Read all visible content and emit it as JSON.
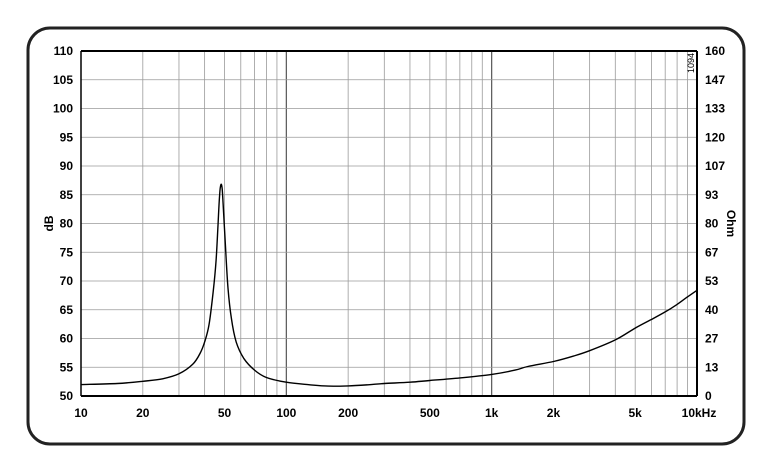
{
  "chart_data": {
    "type": "line",
    "xscale": "log",
    "xlim": [
      10,
      10000
    ],
    "ylim_left": [
      50,
      110
    ],
    "ylim_right": [
      0,
      160
    ],
    "ylabel_left": "dB",
    "ylabel_right": "Ohm",
    "grid": true,
    "watermark": "1094",
    "x_ticks": [
      {
        "value": 10,
        "label": "10"
      },
      {
        "value": 20,
        "label": "20"
      },
      {
        "value": 50,
        "label": "50"
      },
      {
        "value": 100,
        "label": "100"
      },
      {
        "value": 200,
        "label": "200"
      },
      {
        "value": 500,
        "label": "500"
      },
      {
        "value": 1000,
        "label": "1k"
      },
      {
        "value": 2000,
        "label": "2k"
      },
      {
        "value": 5000,
        "label": "5k"
      },
      {
        "value": 10000,
        "label": "10kHz"
      }
    ],
    "y_ticks_left": [
      "50",
      "55",
      "60",
      "65",
      "70",
      "75",
      "80",
      "85",
      "90",
      "95",
      "100",
      "105",
      "110"
    ],
    "y_ticks_right": [
      "0",
      "13",
      "27",
      "40",
      "53",
      "67",
      "80",
      "93",
      "107",
      "120",
      "133",
      "147",
      "160"
    ],
    "series": [
      {
        "axis": "right",
        "unit": "Ohm",
        "points": [
          [
            10,
            5.3
          ],
          [
            15,
            5.8
          ],
          [
            20,
            6.8
          ],
          [
            25,
            8.0
          ],
          [
            30,
            10.3
          ],
          [
            35,
            14.7
          ],
          [
            38,
            19.7
          ],
          [
            40,
            25.0
          ],
          [
            42,
            33.0
          ],
          [
            44,
            48.0
          ],
          [
            45.5,
            63.0
          ],
          [
            46.5,
            80.0
          ],
          [
            47.3,
            93.0
          ],
          [
            48,
            98.0
          ],
          [
            48.7,
            96.0
          ],
          [
            49.5,
            85.0
          ],
          [
            50.5,
            70.0
          ],
          [
            52,
            50.0
          ],
          [
            54,
            36.0
          ],
          [
            57,
            25.0
          ],
          [
            62,
            17.5
          ],
          [
            70,
            12.0
          ],
          [
            80,
            8.6
          ],
          [
            100,
            6.4
          ],
          [
            130,
            5.2
          ],
          [
            160,
            4.6
          ],
          [
            200,
            4.7
          ],
          [
            250,
            5.2
          ],
          [
            300,
            5.8
          ],
          [
            400,
            6.4
          ],
          [
            500,
            7.2
          ],
          [
            700,
            8.4
          ],
          [
            1000,
            10.0
          ],
          [
            1300,
            12.0
          ],
          [
            1500,
            13.7
          ],
          [
            2000,
            16.0
          ],
          [
            2500,
            18.5
          ],
          [
            3000,
            21.0
          ],
          [
            4000,
            26.0
          ],
          [
            5000,
            31.5
          ],
          [
            6000,
            35.5
          ],
          [
            7000,
            39.0
          ],
          [
            8000,
            42.5
          ],
          [
            9000,
            46.0
          ],
          [
            10000,
            49.0
          ]
        ]
      }
    ]
  }
}
